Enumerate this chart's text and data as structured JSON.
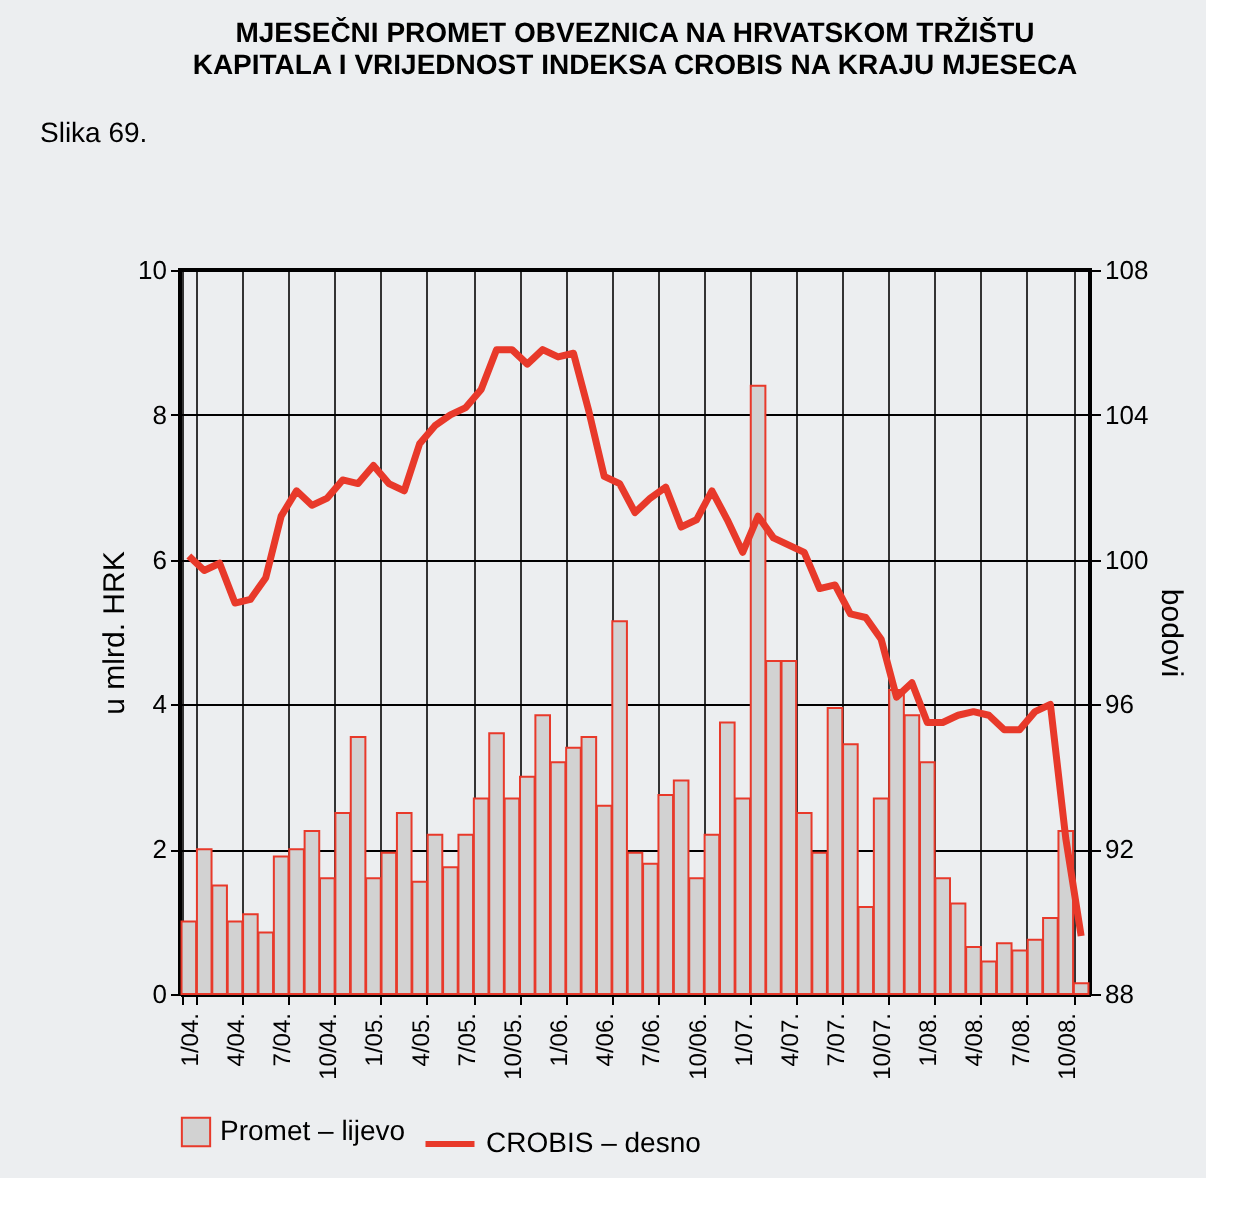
{
  "chart_data": {
    "type": "bar",
    "title": "MJESEČNI PROMET OBVEZNICA NA HRVATSKOM TRŽIŠTU\nKAPITALA I VRIJEDNOST INDEKSA CROBIS NA KRAJU MJESECA",
    "ylabel": "u mlrd. HRK",
    "y2label": "bodovi",
    "annotations": [
      "Slika 69."
    ],
    "categories": [
      "1/04.",
      null,
      null,
      "4/04.",
      null,
      null,
      "7/04.",
      null,
      null,
      "10/04.",
      null,
      null,
      "1/05.",
      null,
      null,
      "4/05.",
      null,
      null,
      "7/05.",
      null,
      null,
      "10/05.",
      null,
      null,
      "1/06.",
      null,
      null,
      "4/06.",
      null,
      null,
      "7/06.",
      null,
      null,
      "10/06.",
      null,
      null,
      "1/07.",
      null,
      null,
      "4/07.",
      null,
      null,
      "7/07.",
      null,
      null,
      "10/07.",
      null,
      null,
      "1/08.",
      null,
      null,
      "4/08.",
      null,
      null,
      "7/08.",
      null,
      null,
      "10/08.",
      null
    ],
    "series": [
      {
        "name": "Promet – lijevo",
        "type": "bar",
        "color": "#d2d2d2",
        "values": [
          1.0,
          2.0,
          1.5,
          1.0,
          1.1,
          0.85,
          1.9,
          2.0,
          2.25,
          1.6,
          2.5,
          3.55,
          1.6,
          1.95,
          2.5,
          1.55,
          2.2,
          1.75,
          2.2,
          2.7,
          3.6,
          2.7,
          3.0,
          3.85,
          3.2,
          3.4,
          3.55,
          2.6,
          5.15,
          1.95,
          1.8,
          2.75,
          2.95,
          1.6,
          2.2,
          3.75,
          2.7,
          8.4,
          4.6,
          4.6,
          2.5,
          1.95,
          3.95,
          3.45,
          1.2,
          2.7,
          4.2,
          3.85,
          3.2,
          1.6,
          1.25,
          0.65,
          0.45,
          0.7,
          0.6,
          0.75,
          1.05,
          2.25,
          0.15
        ]
      },
      {
        "name": "CROBIS – desno",
        "type": "line",
        "axis": "y2",
        "color": "#e8392a",
        "values": [
          100.1,
          99.7,
          99.9,
          98.8,
          98.9,
          99.5,
          101.2,
          101.9,
          101.5,
          101.7,
          102.2,
          102.1,
          102.6,
          102.1,
          101.9,
          103.2,
          103.7,
          104.0,
          104.2,
          104.7,
          105.8,
          105.8,
          105.4,
          105.8,
          105.6,
          105.7,
          104.1,
          102.3,
          102.1,
          101.3,
          101.7,
          102.0,
          100.9,
          101.1,
          101.9,
          101.1,
          100.2,
          101.2,
          100.6,
          100.4,
          100.2,
          99.2,
          99.3,
          98.5,
          98.4,
          97.8,
          96.2,
          96.6,
          95.5,
          95.5,
          95.7,
          95.8,
          95.7,
          95.3,
          95.3,
          95.8,
          96.0,
          92.3,
          89.6
        ]
      }
    ],
    "ylim": [
      0,
      10
    ],
    "yticks": [
      0,
      2,
      4,
      6,
      8,
      10
    ],
    "y2lim": [
      88,
      108
    ],
    "y2ticks": [
      88,
      92,
      96,
      100,
      104,
      108
    ],
    "grid": true,
    "legend": "bottom",
    "line_style": "solid"
  }
}
